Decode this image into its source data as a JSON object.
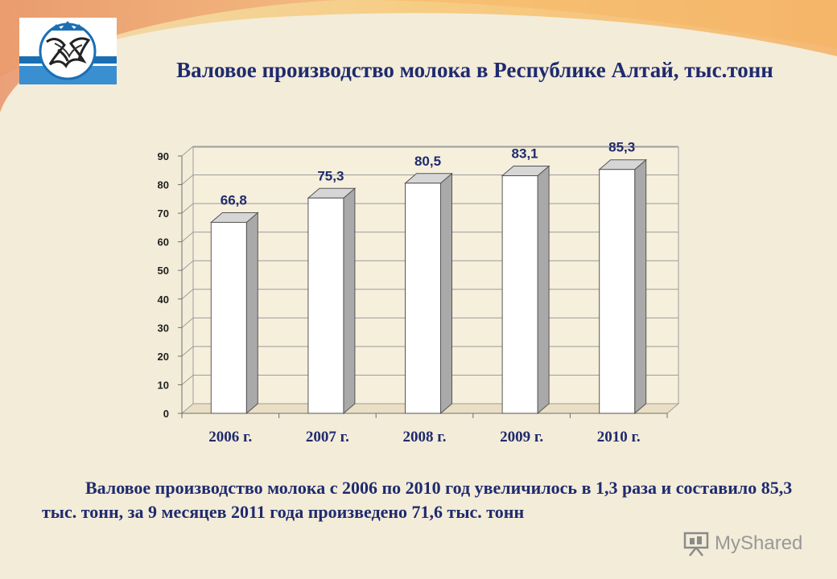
{
  "slide": {
    "title": "Валовое производство молока в Республике Алтай, тыс.тонн",
    "caption": "Валовое производство молока с 2006 по 2010 год увеличилось в 1,3 раза и составило 85,3 тыс. тонн, за 9 месяцев 2011 года произведено 71,6 тыс. тонн",
    "watermark": "MyShared",
    "logo_icon": "coat-of-arms-altai-republic",
    "watermark_icon": "presentation-board-icon"
  },
  "colors": {
    "title_text": "#1f2b6e",
    "bar_front": "#ffffff",
    "bar_side": "#a9a9a9",
    "bar_top": "#d6d6d6",
    "axis_label": "#1f2b6e",
    "value_label": "#1f2b6e"
  },
  "chart_data": {
    "type": "bar",
    "categories": [
      "2006 г.",
      "2007 г.",
      "2008 г.",
      "2009 г.",
      "2010 г."
    ],
    "values": [
      66.8,
      75.3,
      80.5,
      83.1,
      85.3
    ],
    "value_labels": [
      "66,8",
      "75,3",
      "80,5",
      "83,1",
      "85,3"
    ],
    "y_ticks": [
      0,
      10,
      20,
      30,
      40,
      50,
      60,
      70,
      80,
      90
    ],
    "ylim": [
      0,
      90
    ],
    "grid": true,
    "style": "3d-column"
  }
}
